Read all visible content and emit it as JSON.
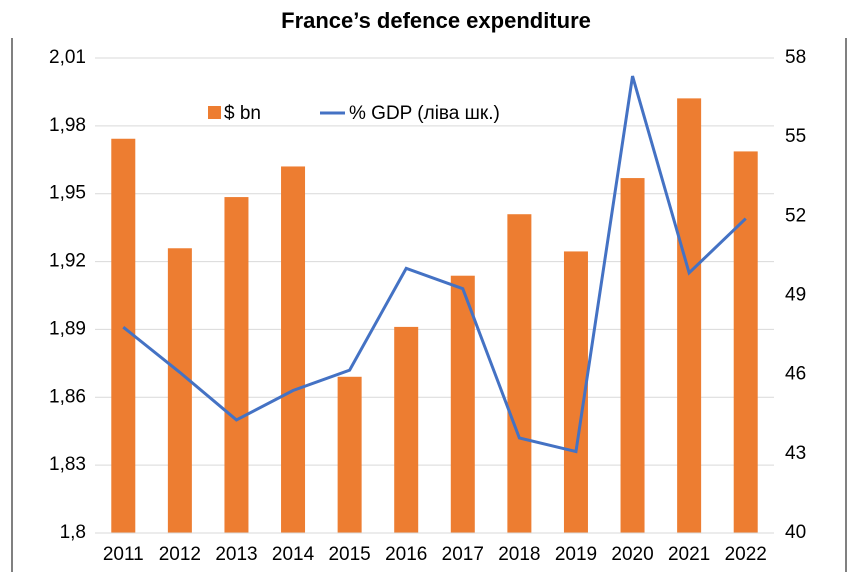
{
  "chart_data": {
    "type": "bar_line",
    "title": "France’s defence expenditure",
    "categories": [
      "2011",
      "2012",
      "2013",
      "2014",
      "2015",
      "2016",
      "2017",
      "2018",
      "2019",
      "2020",
      "2021",
      "2022"
    ],
    "series": [
      {
        "name": "$ bn",
        "type": "bar",
        "axis": "y2",
        "color": "#ED7D31",
        "values": [
          54.94,
          50.79,
          52.73,
          53.89,
          45.92,
          47.81,
          49.75,
          52.08,
          50.67,
          53.45,
          56.47,
          54.46
        ]
      },
      {
        "name": "% GDP (ліва шк.)",
        "type": "line",
        "axis": "y",
        "color": "#4472C4",
        "values": [
          1.891,
          1.871,
          1.85,
          1.863,
          1.872,
          1.917,
          1.908,
          1.842,
          1.836,
          2.002,
          1.915,
          1.939
        ]
      }
    ],
    "ylim": [
      1.8,
      2.01
    ],
    "yticks": [
      {
        "value": 1.8,
        "label": "1,8"
      },
      {
        "value": 1.83,
        "label": "1,83"
      },
      {
        "value": 1.86,
        "label": "1,86"
      },
      {
        "value": 1.89,
        "label": "1,89"
      },
      {
        "value": 1.92,
        "label": "1,92"
      },
      {
        "value": 1.95,
        "label": "1,95"
      },
      {
        "value": 1.98,
        "label": "1,98"
      },
      {
        "value": 2.01,
        "label": "2,01"
      }
    ],
    "y2lim": [
      40,
      58
    ],
    "y2ticks": [
      40,
      43,
      46,
      49,
      52,
      55,
      58
    ],
    "grid": true
  }
}
